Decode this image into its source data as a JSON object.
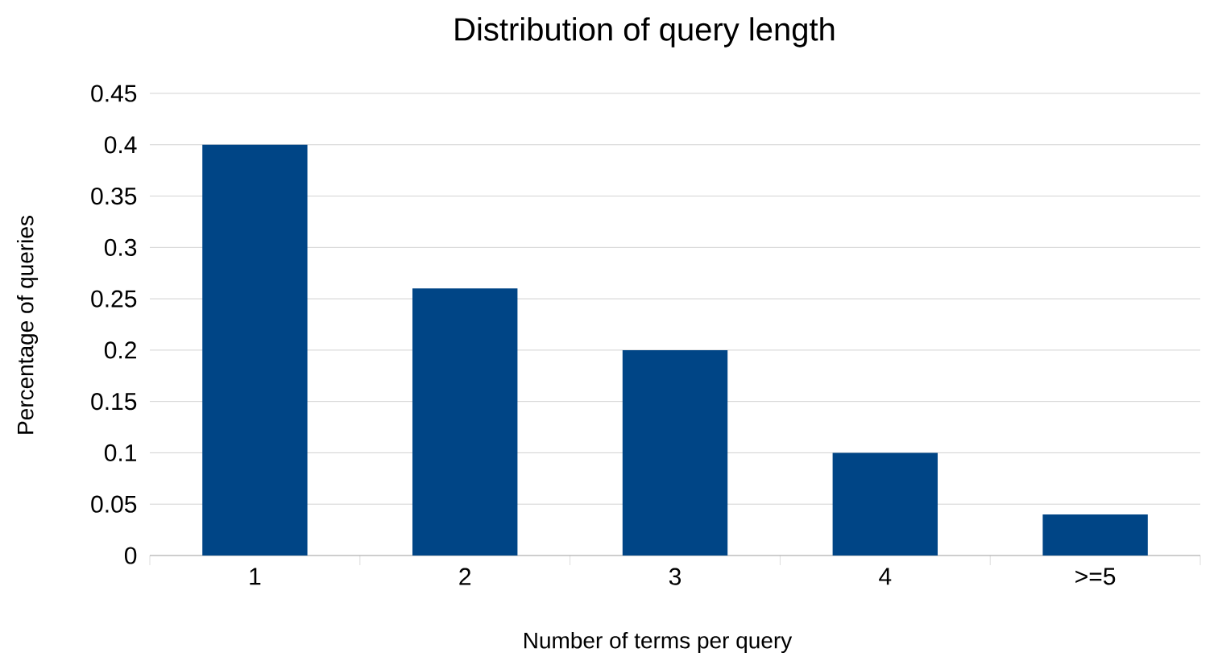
{
  "chart_data": {
    "type": "bar",
    "title": "Distribution of query length",
    "xlabel": "Number of terms per query",
    "ylabel": "Percentage of queries",
    "categories": [
      "1",
      "2",
      "3",
      "4",
      ">=5"
    ],
    "values": [
      0.4,
      0.26,
      0.2,
      0.1,
      0.04
    ],
    "color": "#004586",
    "ylim": [
      0,
      0.45
    ],
    "yticks": [
      0,
      0.05,
      0.1,
      0.15,
      0.2,
      0.25,
      0.3,
      0.35,
      0.4,
      0.45
    ],
    "grid": "y"
  }
}
